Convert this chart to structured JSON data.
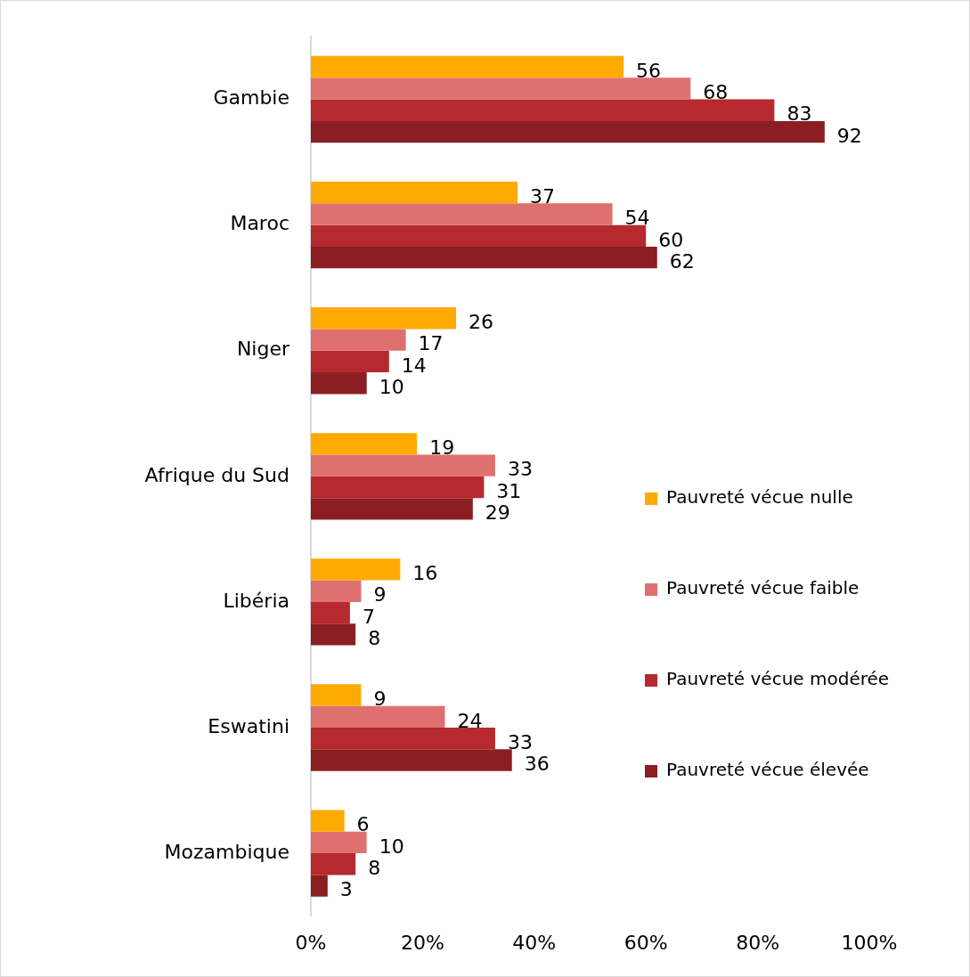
{
  "chart_data": {
    "type": "bar",
    "orientation": "horizontal",
    "categories": [
      "Gambie",
      "Maroc",
      "Niger",
      "Afrique du Sud",
      "Libéria",
      "Eswatini",
      "Mozambique"
    ],
    "series": [
      {
        "name": "Pauvreté vécue nulle",
        "color": "#ffaa00",
        "values": [
          56,
          37,
          26,
          19,
          16,
          9,
          6
        ]
      },
      {
        "name": "Pauvreté vécue faible",
        "color": "#e07070",
        "values": [
          68,
          54,
          17,
          33,
          9,
          24,
          10
        ]
      },
      {
        "name": "Pauvreté vécue modérée",
        "color": "#b5292f",
        "values": [
          83,
          60,
          14,
          31,
          7,
          33,
          8
        ]
      },
      {
        "name": "Pauvreté vécue élevée",
        "color": "#8b1e22",
        "values": [
          92,
          62,
          10,
          29,
          8,
          36,
          3
        ]
      }
    ],
    "xlim": [
      0,
      100
    ],
    "xticks": [
      {
        "value": 0,
        "label": "0%"
      },
      {
        "value": 20,
        "label": "20%"
      },
      {
        "value": 40,
        "label": "40%"
      },
      {
        "value": 60,
        "label": "60%"
      },
      {
        "value": 80,
        "label": "80%"
      },
      {
        "value": 100,
        "label": "100%"
      }
    ],
    "data_labels": true,
    "legend": "right",
    "grid": false
  }
}
